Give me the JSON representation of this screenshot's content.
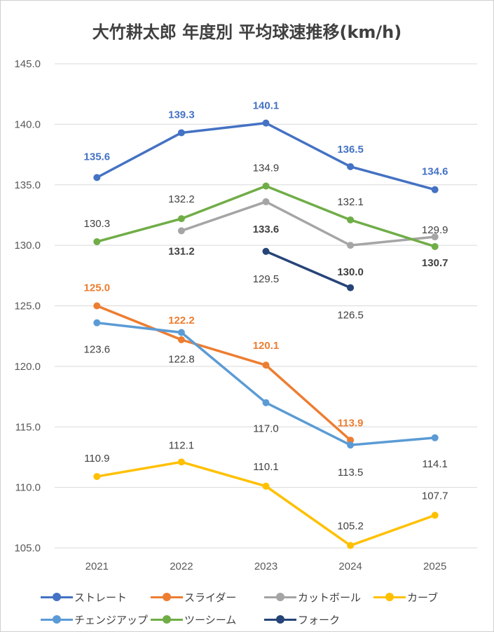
{
  "chart_data": {
    "type": "line",
    "title": "大竹耕太郎 年度別 平均球速推移(km/h)",
    "categories": [
      "2021",
      "2022",
      "2023",
      "2024",
      "2025"
    ],
    "ylim": [
      105,
      145
    ],
    "yticks": [
      "105.0",
      "110.0",
      "115.0",
      "120.0",
      "125.0",
      "130.0",
      "135.0",
      "140.0",
      "145.0"
    ],
    "grid": true,
    "legend_position": "bottom",
    "series": [
      {
        "name": "ストレート",
        "color": "#4472C4",
        "values": [
          135.6,
          139.3,
          140.1,
          136.5,
          134.6
        ],
        "labels": [
          "135.6",
          "139.3",
          "140.1",
          "136.5",
          "134.6"
        ],
        "label_color": "#4472C4",
        "label_bold": true
      },
      {
        "name": "スライダー",
        "color": "#ED7D31",
        "values": [
          125.0,
          122.2,
          120.1,
          113.9,
          null
        ],
        "labels": [
          "125.0",
          "122.2",
          "120.1",
          "113.9",
          null
        ],
        "label_color": "#ED7D31",
        "label_bold": true
      },
      {
        "name": "カットボール",
        "color": "#A5A5A5",
        "values": [
          null,
          131.2,
          133.6,
          130.0,
          130.7
        ],
        "labels": [
          null,
          "131.2",
          "133.6",
          "130.0",
          "130.7"
        ],
        "label_color": "#404040",
        "label_bold": true
      },
      {
        "name": "カーブ",
        "color": "#FFC000",
        "values": [
          110.9,
          112.1,
          110.1,
          105.2,
          107.7
        ],
        "labels": [
          "110.9",
          "112.1",
          "110.1",
          "105.2",
          "107.7"
        ],
        "label_color": "#404040",
        "label_bold": false
      },
      {
        "name": "チェンジアップ",
        "color": "#5B9BD5",
        "values": [
          123.6,
          122.8,
          117.0,
          113.5,
          114.1
        ],
        "labels": [
          "123.6",
          "122.8",
          "117.0",
          "113.5",
          "114.1"
        ],
        "label_color": "#404040",
        "label_bold": false
      },
      {
        "name": "ツーシーム",
        "color": "#70AD47",
        "values": [
          130.3,
          132.2,
          134.9,
          132.1,
          129.9
        ],
        "labels": [
          "130.3",
          "132.2",
          "134.9",
          "132.1",
          "129.9"
        ],
        "label_color": "#404040",
        "label_bold": false
      },
      {
        "name": "フォーク",
        "color": "#264478",
        "values": [
          null,
          null,
          129.5,
          126.5,
          null
        ],
        "labels": [
          null,
          null,
          "129.5",
          "126.5",
          null
        ],
        "label_color": "#404040",
        "label_bold": false
      }
    ]
  }
}
